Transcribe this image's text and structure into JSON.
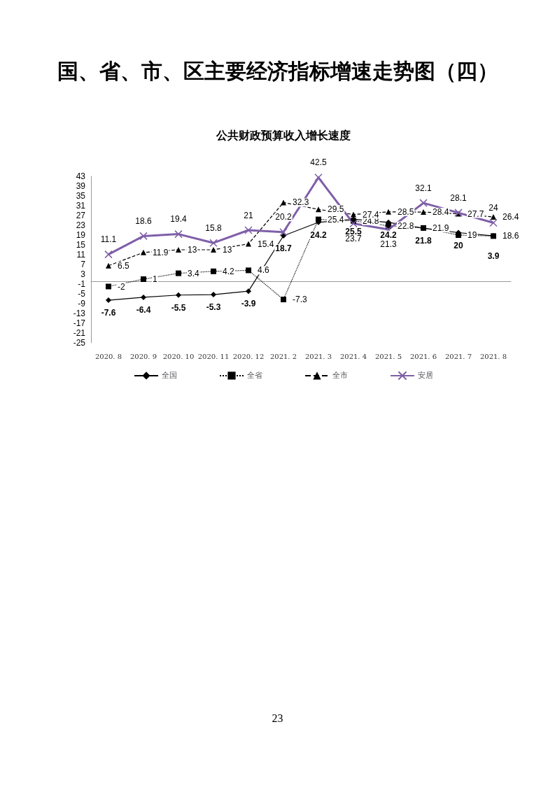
{
  "chart_data": {
    "type": "line",
    "title": "国、省、市、区主要经济指标增速走势图（四）",
    "subtitle": "公共财政预算收入增长速度",
    "annotations": [
      "23",
      {
        "text": "3.9",
        "x": "2021. 8",
        "y": 18.7
      }
    ],
    "categories": [
      "2020. 8",
      "2020. 9",
      "2020. 10",
      "2020. 11",
      "2020. 12",
      "2021. 2",
      "2021. 3",
      "2021. 4",
      "2021. 5",
      "2021. 6",
      "2021. 7",
      "2021. 8"
    ],
    "ylim": [
      -25,
      43
    ],
    "yticks": [
      -25,
      -21,
      -17,
      -13,
      -9,
      -5,
      -1,
      3,
      7,
      11,
      15,
      19,
      23,
      27,
      31,
      35,
      39,
      43
    ],
    "grid": false,
    "legend": "bottom",
    "series": [
      {
        "name": "全国",
        "color": "#000000",
        "marker": "diamond",
        "line_style": "solid",
        "values": [
          -7.6,
          -6.4,
          -5.5,
          -5.3,
          -3.9,
          18.7,
          24.2,
          25.5,
          24.2,
          21.8,
          20,
          18.7
        ],
        "value_labels": [
          "-7.6",
          "-6.4",
          "-5.5",
          "-5.3",
          "-3.9",
          "18.7",
          "24.2",
          "25.5",
          "24.2",
          "21.8",
          "20",
          null
        ]
      },
      {
        "name": "全省",
        "color": "#000000",
        "marker": "square",
        "line_style": "dotted",
        "values": [
          -2,
          1,
          3.4,
          4.2,
          4.6,
          -7.3,
          25.4,
          24.8,
          22.8,
          21.9,
          19,
          18.6
        ],
        "value_labels": [
          "-2",
          "1",
          "3.4",
          "4.2",
          "4.6",
          "-7.3",
          "25.4",
          "24.8",
          "22.8",
          "21.9",
          "19",
          "18.6"
        ]
      },
      {
        "name": "全市",
        "color": "#000000",
        "marker": "triangle",
        "line_style": "dashed",
        "values": [
          6.5,
          11.9,
          13,
          13,
          15.4,
          32.3,
          29.5,
          27.4,
          28.5,
          28.4,
          27.7,
          26.4
        ],
        "value_labels": [
          "6.5",
          "11.9",
          "13",
          "13",
          "15.4",
          "32.3",
          "29.5",
          "27.4",
          "28.5",
          "28.4",
          "27.7",
          "26.4"
        ]
      },
      {
        "name": "安居",
        "color": "#7f5fa8",
        "marker": "cross",
        "line_style": "solid",
        "values": [
          11.1,
          18.6,
          19.4,
          15.8,
          21,
          20.2,
          42.5,
          23.7,
          21.3,
          32.1,
          28.1,
          24
        ],
        "value_labels": [
          "11.1",
          "18.6",
          "19.4",
          "15.8",
          "21",
          "20.2",
          "42.5",
          "23.7",
          "21.3",
          "32.1",
          "28.1",
          "24"
        ]
      }
    ]
  }
}
